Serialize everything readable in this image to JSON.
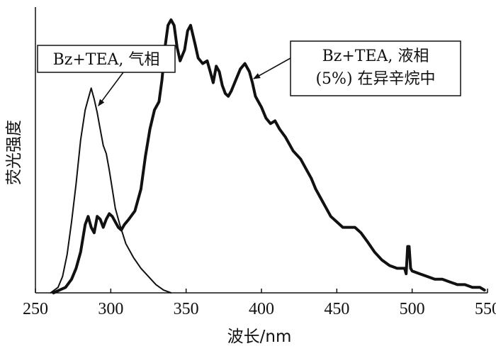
{
  "chart_data": {
    "type": "line",
    "xlabel": "波长/nm",
    "ylabel": "荧光强度",
    "xlim": [
      250,
      550
    ],
    "ylim": [
      0,
      100
    ],
    "x_ticks": [
      250,
      300,
      350,
      400,
      450,
      500,
      550
    ],
    "y_ticks": [],
    "grid": false,
    "series": [
      {
        "name": "Bz+TEA, 气相",
        "line_width": 2,
        "points": [
          [
            260,
            0
          ],
          [
            265,
            2
          ],
          [
            268,
            6
          ],
          [
            271,
            14
          ],
          [
            274,
            26
          ],
          [
            277,
            40
          ],
          [
            280,
            56
          ],
          [
            283,
            67
          ],
          [
            285,
            71
          ],
          [
            287,
            75
          ],
          [
            289,
            71
          ],
          [
            291,
            66
          ],
          [
            293,
            60
          ],
          [
            295,
            54
          ],
          [
            297,
            51
          ],
          [
            299,
            45
          ],
          [
            301,
            38
          ],
          [
            303,
            31
          ],
          [
            306,
            25
          ],
          [
            310,
            18
          ],
          [
            315,
            13
          ],
          [
            320,
            9
          ],
          [
            325,
            6
          ],
          [
            330,
            3
          ],
          [
            335,
            1
          ],
          [
            340,
            0
          ]
        ]
      },
      {
        "name": "Bz+TEA, 液相 (5%) 在异辛烷中",
        "line_width": 4,
        "points": [
          [
            262,
            0
          ],
          [
            266,
            1
          ],
          [
            270,
            2
          ],
          [
            274,
            5
          ],
          [
            277,
            9
          ],
          [
            280,
            15
          ],
          [
            283,
            25
          ],
          [
            285,
            28
          ],
          [
            287,
            24
          ],
          [
            289,
            22
          ],
          [
            291,
            28
          ],
          [
            293,
            27
          ],
          [
            295,
            24
          ],
          [
            297,
            27
          ],
          [
            299,
            29
          ],
          [
            301,
            28
          ],
          [
            303,
            26
          ],
          [
            305,
            24
          ],
          [
            307,
            23
          ],
          [
            309,
            25
          ],
          [
            312,
            27
          ],
          [
            316,
            30
          ],
          [
            320,
            38
          ],
          [
            323,
            50
          ],
          [
            326,
            60
          ],
          [
            329,
            67
          ],
          [
            332,
            70
          ],
          [
            334,
            78
          ],
          [
            336,
            90
          ],
          [
            338,
            98
          ],
          [
            340,
            100
          ],
          [
            342,
            98
          ],
          [
            344,
            90
          ],
          [
            346,
            85
          ],
          [
            349,
            89
          ],
          [
            351,
            96
          ],
          [
            353,
            98
          ],
          [
            356,
            91
          ],
          [
            358,
            86
          ],
          [
            361,
            84
          ],
          [
            364,
            85
          ],
          [
            366,
            81
          ],
          [
            368,
            77
          ],
          [
            370,
            83
          ],
          [
            372,
            81
          ],
          [
            374,
            76
          ],
          [
            376,
            73
          ],
          [
            378,
            72
          ],
          [
            380,
            74
          ],
          [
            383,
            78
          ],
          [
            386,
            82
          ],
          [
            389,
            84
          ],
          [
            392,
            81
          ],
          [
            394,
            77
          ],
          [
            396,
            72
          ],
          [
            398,
            70
          ],
          [
            400,
            68
          ],
          [
            403,
            64
          ],
          [
            406,
            62
          ],
          [
            409,
            63
          ],
          [
            412,
            60
          ],
          [
            416,
            57
          ],
          [
            421,
            52
          ],
          [
            426,
            49
          ],
          [
            430,
            45
          ],
          [
            433,
            42
          ],
          [
            436,
            38
          ],
          [
            440,
            34
          ],
          [
            443,
            31
          ],
          [
            446,
            28
          ],
          [
            450,
            26
          ],
          [
            454,
            24
          ],
          [
            458,
            24
          ],
          [
            462,
            24
          ],
          [
            466,
            22
          ],
          [
            470,
            19
          ],
          [
            475,
            15
          ],
          [
            480,
            12
          ],
          [
            485,
            10
          ],
          [
            490,
            9
          ],
          [
            495,
            9
          ],
          [
            496,
            7
          ],
          [
            497,
            17
          ],
          [
            498,
            17
          ],
          [
            499,
            9
          ],
          [
            500,
            8
          ],
          [
            505,
            7
          ],
          [
            510,
            6
          ],
          [
            515,
            5
          ],
          [
            520,
            5
          ],
          [
            525,
            4
          ],
          [
            530,
            3
          ],
          [
            535,
            3
          ],
          [
            540,
            2
          ],
          [
            545,
            2
          ],
          [
            548,
            1
          ]
        ]
      }
    ],
    "annotations": [
      {
        "text": "Bz+TEA, 气相",
        "target": [
          288,
          68
        ]
      },
      {
        "text_lines": [
          "Bz+TEA, 液相",
          "(5%) 在异辛烷中"
        ],
        "target": [
          392,
          80
        ]
      }
    ]
  }
}
